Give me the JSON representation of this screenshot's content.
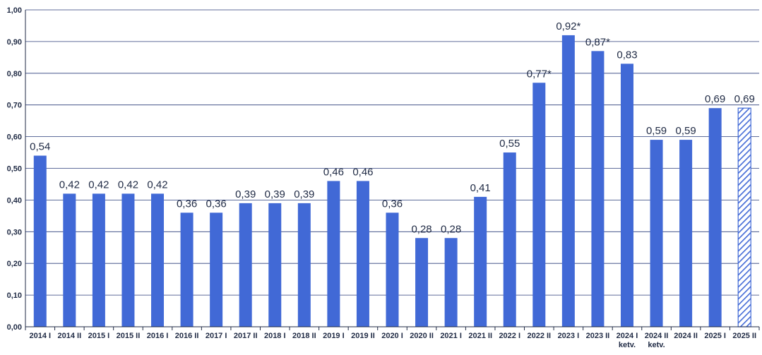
{
  "chart_data": {
    "type": "bar",
    "title": "",
    "xlabel": "",
    "ylabel": "",
    "ylim": [
      0,
      1.0
    ],
    "yticks": [
      "0,00",
      "0,10",
      "0,20",
      "0,30",
      "0,40",
      "0,50",
      "0,60",
      "0,70",
      "0,80",
      "0,90",
      "1,00"
    ],
    "grid": true,
    "legend": "none",
    "categories": [
      [
        "2014 I"
      ],
      [
        "2014 II"
      ],
      [
        "2015 I"
      ],
      [
        "2015 II"
      ],
      [
        "2016 I"
      ],
      [
        "2016 II"
      ],
      [
        "2017 I"
      ],
      [
        "2017 II"
      ],
      [
        "2018 I"
      ],
      [
        "2018 II"
      ],
      [
        "2019 I"
      ],
      [
        "2019 II"
      ],
      [
        "2020 I"
      ],
      [
        "2020 II"
      ],
      [
        "2021 I"
      ],
      [
        "2021 II"
      ],
      [
        "2022 I"
      ],
      [
        "2022 II"
      ],
      [
        "2023 I"
      ],
      [
        "2023 II"
      ],
      [
        "2024 I",
        "ketv."
      ],
      [
        "2024 II",
        "ketv."
      ],
      [
        "2024 II"
      ],
      [
        "2025 I"
      ],
      [
        "2025 II"
      ]
    ],
    "values": [
      0.54,
      0.42,
      0.42,
      0.42,
      0.42,
      0.36,
      0.36,
      0.39,
      0.39,
      0.39,
      0.46,
      0.46,
      0.36,
      0.28,
      0.28,
      0.41,
      0.55,
      0.77,
      0.92,
      0.87,
      0.83,
      0.59,
      0.59,
      0.69,
      0.69
    ],
    "labels": [
      "0,54",
      "0,42",
      "0,42",
      "0,42",
      "0,42",
      "0,36",
      "0,36",
      "0,39",
      "0,39",
      "0,39",
      "0,46",
      "0,46",
      "0,36",
      "0,28",
      "0,28",
      "0,41",
      "0,55",
      "0,77*",
      "0,92*",
      "0,87*",
      "0,83",
      "0,59",
      "0,59",
      "0,69",
      "0,69"
    ],
    "hatched": [
      false,
      false,
      false,
      false,
      false,
      false,
      false,
      false,
      false,
      false,
      false,
      false,
      false,
      false,
      false,
      false,
      false,
      false,
      false,
      false,
      false,
      false,
      false,
      false,
      true
    ],
    "colors": {
      "bar": "#4169d6",
      "grid": "#2c3e7a",
      "text": "#1f2a44",
      "axis": "#1f2a44"
    }
  }
}
